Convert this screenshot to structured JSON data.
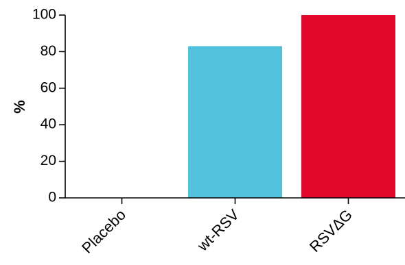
{
  "chart_data": {
    "type": "bar",
    "categories": [
      "Placebo",
      "wt-RSV",
      "RSVΔG"
    ],
    "values": [
      0,
      83,
      100
    ],
    "colors": [
      "#ffffff",
      "#52c1dc",
      "#e0092b"
    ],
    "ylabel": "%",
    "ylim": [
      0,
      100
    ],
    "yticks": [
      0,
      20,
      40,
      60,
      80,
      100
    ],
    "grid": false,
    "legend": "none"
  }
}
